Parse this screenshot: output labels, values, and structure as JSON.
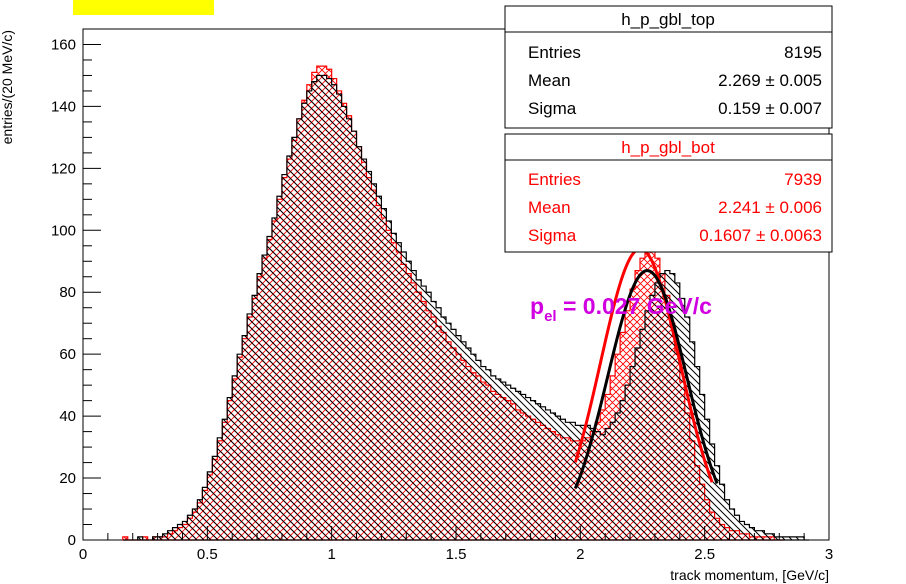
{
  "chart_data": {
    "type": "histogram",
    "xlabel": "track momentum, [GeV/c]",
    "ylabel": "entries/(20 MeV/c)",
    "xlim": [
      0,
      3
    ],
    "ylim": [
      0,
      165
    ],
    "x_ticks": [
      "0",
      "0.5",
      "1",
      "1.5",
      "2",
      "2.5",
      "3"
    ],
    "y_ticks": [
      "0",
      "20",
      "40",
      "60",
      "80",
      "100",
      "120",
      "140",
      "160"
    ],
    "bin_width": 0.02,
    "colors": {
      "top": "#000000",
      "bot": "#ff0000",
      "annotation": "#d000e0",
      "swatch": "#ffff00"
    },
    "series": [
      {
        "name": "h_p_gbl_top",
        "color": "#000000",
        "hatch": "back-diagonal",
        "start_x": 0.16,
        "values": [
          0,
          0,
          0,
          1,
          0,
          0,
          1,
          1,
          2,
          3,
          4,
          5,
          6,
          8,
          10,
          13,
          17,
          22,
          27,
          33,
          39,
          46,
          53,
          60,
          66,
          73,
          79,
          86,
          92,
          98,
          104,
          111,
          118,
          124,
          130,
          136,
          141,
          145,
          148,
          150,
          150,
          149,
          147,
          144,
          140,
          136,
          132,
          127,
          123,
          119,
          115,
          111,
          107,
          103,
          99,
          96,
          93,
          90,
          87,
          84,
          82,
          80,
          77,
          75,
          72,
          70,
          68,
          66,
          64,
          62,
          60,
          58,
          56,
          55,
          53,
          52,
          51,
          50,
          49,
          48,
          47,
          46,
          45,
          44,
          43,
          42,
          41,
          40,
          39,
          38,
          38,
          37,
          37,
          37,
          36,
          35,
          34,
          36,
          38,
          41,
          45,
          50,
          56,
          62,
          68,
          74,
          79,
          83,
          86,
          87,
          86,
          83,
          78,
          72,
          64,
          56,
          47,
          39,
          31,
          24,
          18,
          13,
          10,
          8,
          6,
          5,
          4,
          3,
          3,
          2,
          2,
          1,
          1,
          1,
          1,
          1,
          1,
          0
        ]
      },
      {
        "name": "h_p_gbl_bot",
        "color": "#ff0000",
        "hatch": "cross",
        "start_x": 0.16,
        "values": [
          1,
          0,
          0,
          0,
          1,
          0,
          1,
          1,
          1,
          2,
          3,
          4,
          5,
          7,
          9,
          12,
          16,
          21,
          26,
          32,
          38,
          45,
          52,
          59,
          65,
          72,
          78,
          85,
          91,
          97,
          103,
          110,
          117,
          123,
          129,
          136,
          142,
          147,
          151,
          153,
          153,
          152,
          149,
          145,
          141,
          137,
          132,
          127,
          122,
          117,
          113,
          108,
          104,
          100,
          96,
          93,
          89,
          86,
          83,
          80,
          77,
          74,
          72,
          69,
          67,
          64,
          62,
          60,
          58,
          56,
          54,
          53,
          51,
          50,
          48,
          47,
          46,
          45,
          44,
          42,
          41,
          40,
          39,
          38,
          37,
          36,
          35,
          34,
          33,
          33,
          32,
          32,
          32,
          33,
          35,
          38,
          42,
          47,
          53,
          60,
          67,
          74,
          81,
          87,
          91,
          94,
          94,
          91,
          86,
          79,
          70,
          61,
          51,
          41,
          32,
          24,
          18,
          13,
          9,
          7,
          5,
          4,
          3,
          3,
          2,
          2,
          1,
          1,
          1,
          1,
          1,
          0,
          0
        ]
      }
    ],
    "fits": [
      {
        "series": "h_p_gbl_top",
        "color": "#000000",
        "mean": 2.269,
        "sigma": 0.159,
        "amplitude": 87,
        "range": [
          1.98,
          2.55
        ]
      },
      {
        "series": "h_p_gbl_bot",
        "color": "#ff0000",
        "mean": 2.241,
        "sigma": 0.1607,
        "amplitude": 94,
        "range": [
          1.98,
          2.53
        ]
      }
    ],
    "annotation": {
      "base": "p",
      "subscript": "el",
      "rest": " = 0.027 GeV/c"
    },
    "stats_boxes": [
      {
        "title": "h_p_gbl_top",
        "color": "#000000",
        "rows": [
          {
            "label": "Entries",
            "value": "8195"
          },
          {
            "label": "Mean",
            "value": "2.269 ± 0.005"
          },
          {
            "label": "Sigma",
            "value": "0.159 ± 0.007"
          }
        ]
      },
      {
        "title": "h_p_gbl_bot",
        "color": "#ff0000",
        "rows": [
          {
            "label": "Entries",
            "value": "7939"
          },
          {
            "label": "Mean",
            "value": "2.241 ± 0.006"
          },
          {
            "label": "Sigma",
            "value": "0.1607 ± 0.0063"
          }
        ]
      }
    ]
  }
}
